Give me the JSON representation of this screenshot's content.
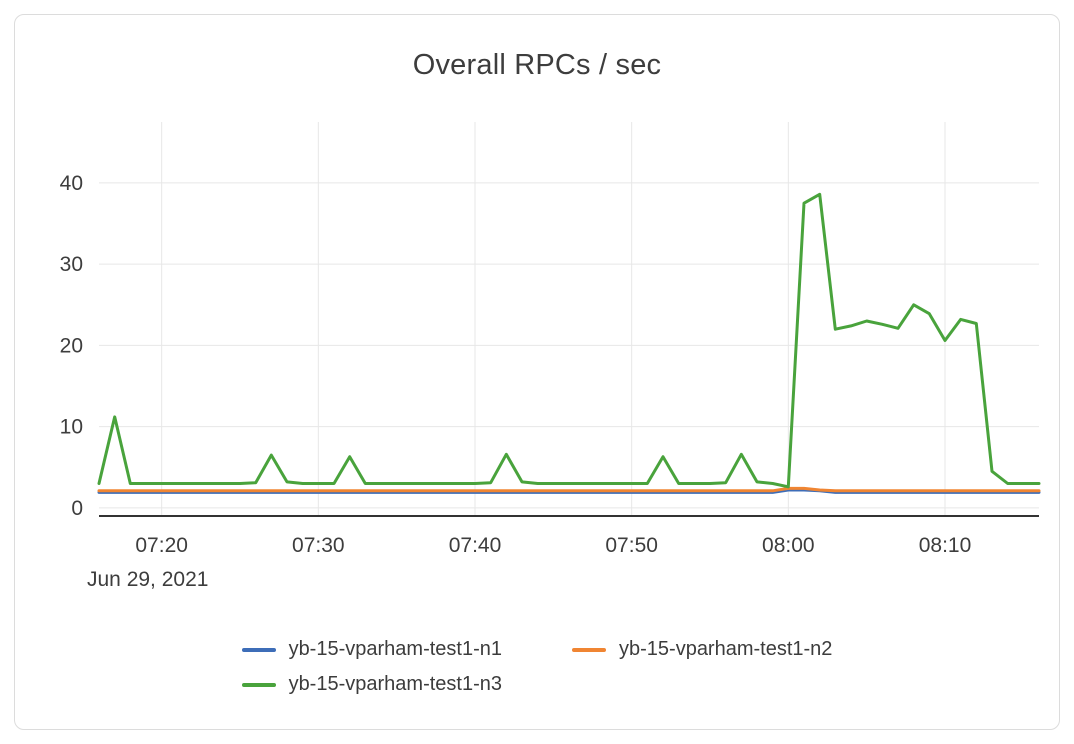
{
  "chart_data": {
    "type": "line",
    "title": "Overall RPCs / sec",
    "x_date_label": "Jun 29, 2021",
    "x_start_time": "07:16",
    "x_step_minutes": 1,
    "x_ticks": [
      {
        "offset": 4,
        "label": "07:20"
      },
      {
        "offset": 14,
        "label": "07:30"
      },
      {
        "offset": 24,
        "label": "07:40"
      },
      {
        "offset": 34,
        "label": "07:50"
      },
      {
        "offset": 44,
        "label": "08:00"
      },
      {
        "offset": 54,
        "label": "08:10"
      }
    ],
    "y_ticks": [
      0,
      10,
      20,
      30,
      40
    ],
    "ylim": [
      -1,
      47.5
    ],
    "grid": true,
    "legend_position": "bottom",
    "axis_color": "#333333",
    "grid_color": "#e7e7e7",
    "tick_label_color": "#3d3d3d",
    "series": [
      {
        "name": "yb-15-vparham-test1-n1",
        "color": "#3d6db8",
        "values": [
          1.9,
          1.9,
          1.9,
          1.9,
          1.9,
          1.9,
          1.9,
          1.9,
          1.9,
          1.9,
          1.9,
          1.9,
          1.9,
          1.9,
          1.9,
          1.9,
          1.9,
          1.9,
          1.9,
          1.9,
          1.9,
          1.9,
          1.9,
          1.9,
          1.9,
          1.9,
          1.9,
          1.9,
          1.9,
          1.9,
          1.9,
          1.9,
          1.9,
          1.9,
          1.9,
          1.9,
          1.9,
          1.9,
          1.9,
          1.9,
          1.9,
          1.9,
          1.9,
          1.9,
          2.2,
          2.2,
          2.1,
          1.9,
          1.9,
          1.9,
          1.9,
          1.9,
          1.9,
          1.9,
          1.9,
          1.9,
          1.9,
          1.9,
          1.9,
          1.9,
          1.9
        ]
      },
      {
        "name": "yb-15-vparham-test1-n2",
        "color": "#f08532",
        "values": [
          2.1,
          2.1,
          2.1,
          2.1,
          2.1,
          2.1,
          2.1,
          2.1,
          2.1,
          2.1,
          2.1,
          2.1,
          2.1,
          2.1,
          2.1,
          2.1,
          2.1,
          2.1,
          2.1,
          2.1,
          2.1,
          2.1,
          2.1,
          2.1,
          2.1,
          2.1,
          2.1,
          2.1,
          2.1,
          2.1,
          2.1,
          2.1,
          2.1,
          2.1,
          2.1,
          2.1,
          2.1,
          2.1,
          2.1,
          2.1,
          2.1,
          2.1,
          2.1,
          2.1,
          2.4,
          2.4,
          2.2,
          2.1,
          2.1,
          2.1,
          2.1,
          2.1,
          2.1,
          2.1,
          2.1,
          2.1,
          2.1,
          2.1,
          2.1,
          2.1,
          2.1
        ]
      },
      {
        "name": "yb-15-vparham-test1-n3",
        "color": "#49a33c",
        "values": [
          3,
          11.2,
          3,
          3,
          3,
          3,
          3,
          3,
          3,
          3,
          3.1,
          6.5,
          3.2,
          3,
          3,
          3,
          6.3,
          3,
          3,
          3,
          3,
          3,
          3,
          3,
          3,
          3.1,
          6.6,
          3.2,
          3,
          3,
          3,
          3,
          3,
          3,
          3,
          3,
          6.3,
          3,
          3,
          3,
          3.1,
          6.6,
          3.2,
          3,
          2.6,
          37.5,
          38.6,
          22,
          22.4,
          23,
          22.6,
          22.1,
          25,
          23.9,
          20.6,
          23.2,
          22.7,
          4.5,
          3,
          3,
          3
        ]
      }
    ]
  }
}
